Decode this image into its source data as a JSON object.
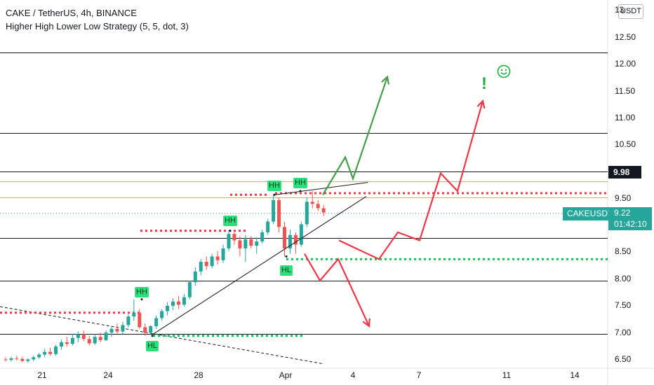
{
  "header": {
    "symbol_line": "CAKE / TetherUS, 4h, BINANCE",
    "indicator_line": "Higher High Lower Low Strategy (5, 5, dot, 3)"
  },
  "currency_button": "USDT",
  "y_axis": {
    "ticks": [
      "13",
      "12.50",
      "12.00",
      "11.50",
      "11.00",
      "10.50",
      "9.50",
      "8.50",
      "8.00",
      "7.50",
      "7.00",
      "6.50"
    ]
  },
  "x_axis": {
    "ticks": [
      "21",
      "24",
      "28",
      "Apr",
      "4",
      "7",
      "11",
      "14"
    ]
  },
  "price_labels": {
    "level_label": "9.98",
    "symbol_label": "CAKEUSDT",
    "current_price": "9.22",
    "countdown": "01:42:10"
  },
  "pivot_tags": [
    "HH",
    "HH",
    "HH",
    "HH",
    "HL",
    "HL"
  ],
  "annotation_icons": [
    "smiley-icon",
    "exclamation-icon"
  ],
  "colors": {
    "up_candle": "#26a69a",
    "down_candle": "#ef5350",
    "bull_path": "#43a047",
    "bear_path": "#f23645",
    "resistance_dots": "#f23645",
    "support_dots": "#00c853",
    "orange_line": "#f7a83b",
    "tag_bg": "#2be07a"
  },
  "chart_data": {
    "type": "candlestick",
    "symbol": "CAKE / TetherUS",
    "timeframe": "4h",
    "exchange": "BINANCE",
    "ylim": [
      6.45,
      13.0
    ],
    "horizontal_levels": [
      12.2,
      10.7,
      9.98,
      8.75,
      7.95,
      6.95
    ],
    "orange_lines": [
      9.8,
      9.5
    ],
    "current_price": 9.22,
    "candles_ohlc": [
      [
        6.48,
        6.52,
        6.44,
        6.47
      ],
      [
        6.47,
        6.53,
        6.44,
        6.5
      ],
      [
        6.5,
        6.55,
        6.46,
        6.49
      ],
      [
        6.49,
        6.53,
        6.43,
        6.45
      ],
      [
        6.45,
        6.5,
        6.42,
        6.48
      ],
      [
        6.48,
        6.55,
        6.45,
        6.52
      ],
      [
        6.52,
        6.6,
        6.49,
        6.57
      ],
      [
        6.57,
        6.68,
        6.52,
        6.62
      ],
      [
        6.62,
        6.7,
        6.55,
        6.58
      ],
      [
        6.58,
        6.75,
        6.55,
        6.72
      ],
      [
        6.72,
        6.85,
        6.66,
        6.8
      ],
      [
        6.8,
        6.9,
        6.72,
        6.77
      ],
      [
        6.77,
        6.95,
        6.74,
        6.88
      ],
      [
        6.88,
        7.0,
        6.8,
        6.95
      ],
      [
        6.95,
        7.02,
        6.82,
        6.86
      ],
      [
        6.86,
        6.92,
        6.74,
        6.78
      ],
      [
        6.78,
        6.95,
        6.75,
        6.9
      ],
      [
        6.9,
        6.98,
        6.8,
        6.84
      ],
      [
        6.84,
        7.02,
        6.82,
        6.98
      ],
      [
        6.98,
        7.1,
        6.9,
        7.05
      ],
      [
        7.05,
        7.15,
        6.96,
        7.0
      ],
      [
        7.0,
        7.18,
        6.95,
        7.12
      ],
      [
        7.12,
        7.32,
        7.08,
        7.28
      ],
      [
        7.28,
        7.6,
        7.2,
        7.35
      ],
      [
        7.35,
        7.42,
        7.05,
        7.08
      ],
      [
        7.08,
        7.15,
        6.92,
        6.98
      ],
      [
        6.98,
        7.12,
        6.94,
        7.1
      ],
      [
        7.1,
        7.3,
        7.05,
        7.25
      ],
      [
        7.25,
        7.42,
        7.2,
        7.38
      ],
      [
        7.38,
        7.55,
        7.3,
        7.48
      ],
      [
        7.48,
        7.62,
        7.4,
        7.56
      ],
      [
        7.56,
        7.66,
        7.42,
        7.5
      ],
      [
        7.5,
        7.7,
        7.46,
        7.64
      ],
      [
        7.64,
        7.95,
        7.6,
        7.92
      ],
      [
        7.92,
        8.2,
        7.85,
        8.12
      ],
      [
        8.12,
        8.35,
        8.05,
        8.3
      ],
      [
        8.3,
        8.4,
        8.15,
        8.22
      ],
      [
        8.22,
        8.45,
        8.18,
        8.4
      ],
      [
        8.4,
        8.5,
        8.25,
        8.33
      ],
      [
        8.33,
        8.62,
        8.28,
        8.55
      ],
      [
        8.55,
        8.88,
        8.5,
        8.82
      ],
      [
        8.82,
        8.9,
        8.62,
        8.7
      ],
      [
        8.7,
        8.78,
        8.4,
        8.55
      ],
      [
        8.55,
        8.8,
        8.3,
        8.72
      ],
      [
        8.72,
        8.78,
        8.55,
        8.6
      ],
      [
        8.6,
        8.75,
        8.45,
        8.68
      ],
      [
        8.68,
        8.9,
        8.64,
        8.85
      ],
      [
        8.85,
        9.1,
        8.8,
        9.05
      ],
      [
        9.05,
        9.55,
        9.0,
        9.45
      ],
      [
        9.45,
        9.5,
        8.85,
        8.95
      ],
      [
        8.95,
        9.05,
        8.4,
        8.55
      ],
      [
        8.55,
        8.9,
        8.45,
        8.8
      ],
      [
        8.8,
        8.85,
        8.45,
        8.62
      ],
      [
        8.62,
        9.05,
        8.58,
        9.0
      ],
      [
        9.0,
        9.5,
        8.95,
        9.42
      ],
      [
        9.42,
        9.62,
        9.3,
        9.38
      ],
      [
        9.38,
        9.45,
        9.25,
        9.3
      ],
      [
        9.3,
        9.36,
        9.15,
        9.22
      ]
    ],
    "pivots": [
      {
        "label": "HH",
        "price": 7.6
      },
      {
        "label": "HL",
        "price": 6.92
      },
      {
        "label": "HH",
        "price": 8.88
      },
      {
        "label": "HH",
        "price": 9.55
      },
      {
        "label": "HL",
        "price": 8.4
      },
      {
        "label": "HH",
        "price": 9.62
      }
    ],
    "resistance_levels": [
      7.35,
      8.88,
      9.55,
      9.58
    ],
    "support_levels": [
      6.92,
      8.35
    ],
    "trendline_support_from": 6.95,
    "trendline_support_to": 9.52,
    "trendline_upper_from": 9.55,
    "trendline_upper_to": 9.78,
    "bull_scenario_path": [
      9.55,
      10.25,
      9.85,
      11.75
    ],
    "bear_scenario_path": [
      8.7,
      8.35,
      8.85,
      8.7,
      9.95,
      9.62,
      11.3
    ],
    "deep_bear_path": [
      8.45,
      7.95,
      8.35,
      7.1
    ]
  }
}
